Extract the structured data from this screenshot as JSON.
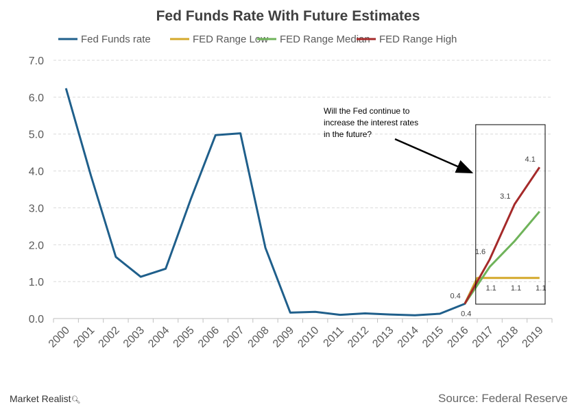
{
  "chart_data": {
    "type": "line",
    "title": "Fed Funds Rate With Future Estimates",
    "xlabel": "",
    "ylabel": "",
    "ylim": [
      0,
      7
    ],
    "yticks": [
      "0.0",
      "1.0",
      "2.0",
      "3.0",
      "4.0",
      "5.0",
      "6.0",
      "7.0"
    ],
    "categories": [
      "2000",
      "2001",
      "2002",
      "2003",
      "2004",
      "2005",
      "2006",
      "2007",
      "2008",
      "2009",
      "2010",
      "2011",
      "2012",
      "2013",
      "2014",
      "2015",
      "2016",
      "2017",
      "2018",
      "2019"
    ],
    "grid": true,
    "legend_position": "top",
    "series": [
      {
        "name": "Fed Funds rate",
        "color": "#1f5f8b",
        "points": [
          [
            0,
            6.24
          ],
          [
            1,
            3.88
          ],
          [
            2,
            1.67
          ],
          [
            3,
            1.13
          ],
          [
            4,
            1.35
          ],
          [
            5,
            3.22
          ],
          [
            6,
            4.97
          ],
          [
            7,
            5.02
          ],
          [
            8,
            1.92
          ],
          [
            9,
            0.16
          ],
          [
            10,
            0.18
          ],
          [
            11,
            0.1
          ],
          [
            12,
            0.14
          ],
          [
            13,
            0.11
          ],
          [
            14,
            0.09
          ],
          [
            15,
            0.13
          ],
          [
            16,
            0.4
          ],
          [
            16.5,
            1.1
          ]
        ]
      },
      {
        "name": "FED Range Low",
        "color": "#d4a82a",
        "points": [
          [
            16,
            0.4
          ],
          [
            16.5,
            1.1
          ],
          [
            17,
            1.1
          ],
          [
            18,
            1.1
          ],
          [
            19,
            1.1
          ]
        ]
      },
      {
        "name": "FED Range Median",
        "color": "#6fb35a",
        "points": [
          [
            16,
            0.4
          ],
          [
            17,
            1.4
          ],
          [
            18,
            2.1
          ],
          [
            19,
            2.9
          ]
        ]
      },
      {
        "name": "FED Range High",
        "color": "#a52a2a",
        "points": [
          [
            16,
            0.4
          ],
          [
            17,
            1.6
          ],
          [
            18,
            3.1
          ],
          [
            19,
            4.1
          ]
        ]
      }
    ],
    "data_labels": [
      {
        "text": "0.4",
        "x": 16,
        "y": 0.4,
        "placement": "above-left"
      },
      {
        "text": "0.4",
        "x": 16,
        "y": 0.4,
        "placement": "below"
      },
      {
        "text": "1.6",
        "x": 17,
        "y": 1.6,
        "placement": "above-left"
      },
      {
        "text": "3.1",
        "x": 18,
        "y": 3.1,
        "placement": "above-left"
      },
      {
        "text": "4.1",
        "x": 19,
        "y": 4.1,
        "placement": "above-left"
      },
      {
        "text": "1.1",
        "x": 17,
        "y": 1.1,
        "placement": "below"
      },
      {
        "text": "1.1",
        "x": 18,
        "y": 1.1,
        "placement": "below"
      },
      {
        "text": "1.1",
        "x": 19,
        "y": 1.1,
        "placement": "below"
      }
    ],
    "annotation": {
      "lines": [
        "Will the Fed continue to",
        "increase the interest rates",
        "in the future?"
      ]
    }
  },
  "footer": {
    "logo": "Market Realist",
    "source": "Source: Federal Reserve"
  }
}
